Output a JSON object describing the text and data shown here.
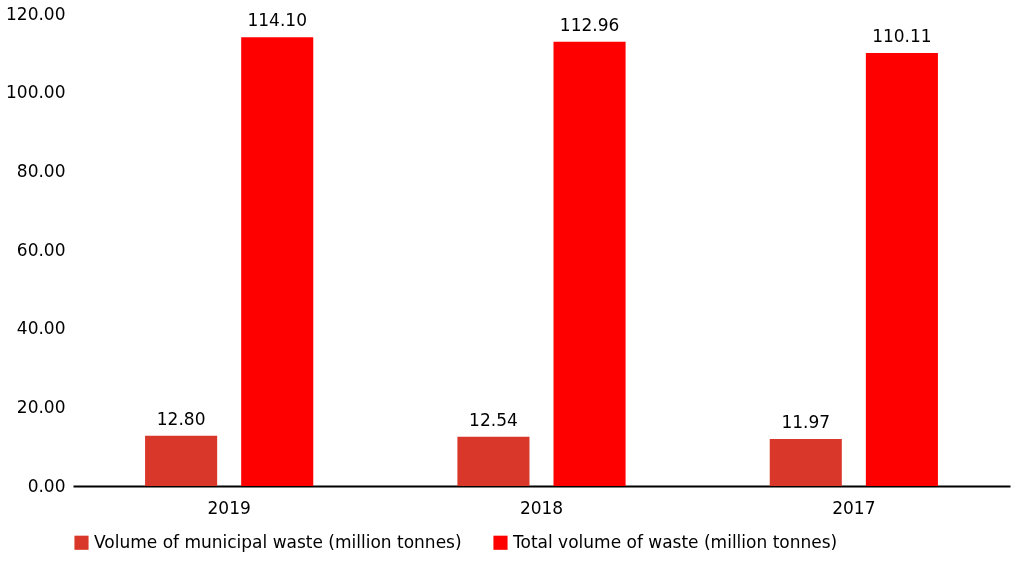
{
  "chart_data": {
    "type": "bar",
    "categories": [
      "2019",
      "2018",
      "2017"
    ],
    "series": [
      {
        "name": "Volume of municipal waste (million tonnes)",
        "color": "#d9372a",
        "values": [
          12.8,
          12.54,
          11.97
        ],
        "value_labels": [
          "12.80",
          "12.54",
          "11.97"
        ]
      },
      {
        "name": "Total volume of waste (million tonnes)",
        "color": "#ff0000",
        "values": [
          114.1,
          112.96,
          110.11
        ],
        "value_labels": [
          "114.10",
          "112.96",
          "110.11"
        ]
      }
    ],
    "ylim": [
      0,
      120
    ],
    "yticks": [
      {
        "value": 0,
        "label": "0.00"
      },
      {
        "value": 20,
        "label": "20.00"
      },
      {
        "value": 40,
        "label": "40.00"
      },
      {
        "value": 60,
        "label": "60.00"
      },
      {
        "value": 80,
        "label": "80.00"
      },
      {
        "value": 100,
        "label": "100.00"
      },
      {
        "value": 120,
        "label": "120.00"
      }
    ],
    "grid": false,
    "legend": "bottom"
  }
}
